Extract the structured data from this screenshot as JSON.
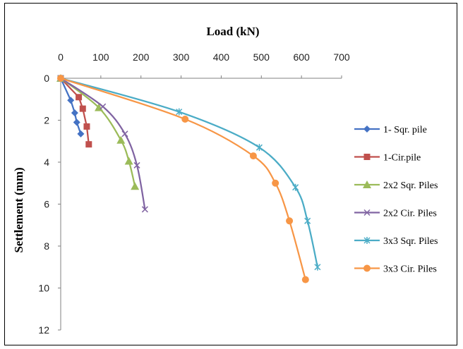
{
  "chart_data": {
    "type": "line",
    "title": "",
    "xlabel": "Load (kN)",
    "ylabel": "Settlement (mm)",
    "x_axis_position": "top",
    "y_axis_inverted": true,
    "xlim": [
      0,
      700
    ],
    "ylim": [
      0,
      12
    ],
    "xticks": [
      0,
      100,
      200,
      300,
      400,
      500,
      600,
      700
    ],
    "yticks": [
      0,
      2,
      4,
      6,
      8,
      10,
      12
    ],
    "grid": false,
    "legend_position": "right",
    "series": [
      {
        "name": "1- Sqr. pile",
        "color": "#4472C4",
        "marker": "diamond",
        "smooth": false,
        "x": [
          0,
          25,
          35,
          40,
          50
        ],
        "y": [
          0,
          1.05,
          1.65,
          2.1,
          2.65
        ]
      },
      {
        "name": "1-Cir.pile",
        "color": "#C0504D",
        "marker": "square",
        "smooth": false,
        "x": [
          0,
          45,
          55,
          65,
          70
        ],
        "y": [
          0,
          0.9,
          1.45,
          2.3,
          3.15
        ]
      },
      {
        "name": "2x2 Sqr. Piles",
        "color": "#9BBB59",
        "marker": "triangle",
        "smooth": true,
        "x": [
          0,
          95,
          150,
          170,
          185
        ],
        "y": [
          0,
          1.4,
          2.95,
          3.95,
          5.15
        ]
      },
      {
        "name": "2x2 Cir. Piles",
        "color": "#8064A2",
        "marker": "x",
        "smooth": true,
        "x": [
          0,
          105,
          160,
          190,
          210
        ],
        "y": [
          0,
          1.35,
          2.65,
          4.15,
          6.25
        ]
      },
      {
        "name": "3x3 Sqr. Piles",
        "color": "#4BACC6",
        "marker": "star",
        "smooth": true,
        "x": [
          0,
          295,
          495,
          585,
          615,
          640
        ],
        "y": [
          0,
          1.6,
          3.3,
          5.2,
          6.8,
          9.0
        ]
      },
      {
        "name": "3x3 Cir. Piles",
        "color": "#F79646",
        "marker": "circle",
        "smooth": true,
        "x": [
          0,
          310,
          480,
          535,
          570,
          610
        ],
        "y": [
          0,
          1.95,
          3.7,
          5.0,
          6.8,
          9.6
        ]
      }
    ]
  }
}
